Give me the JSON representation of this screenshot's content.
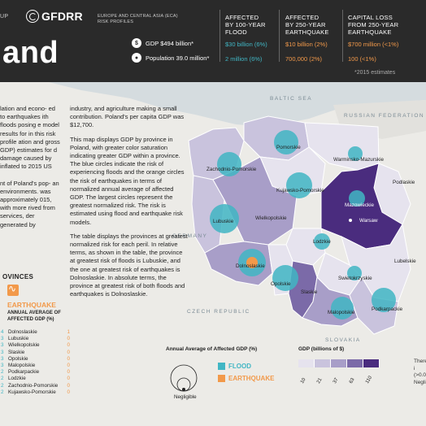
{
  "header": {
    "tag": "UP",
    "logo": "GFDRR",
    "region_line1": "EUROPE AND CENTRAL ASIA (ECA)",
    "region_line2": "RISK PROFILES",
    "title": "land",
    "gdp": "GDP $494 billion*",
    "population": "Population 39.0 million*",
    "cols": [
      {
        "head1": "AFFECTED",
        "head2": "BY 100-YEAR",
        "head3": "FLOOD",
        "v1": "$30 billion (6%)",
        "v2": "2 million (6%)"
      },
      {
        "head1": "AFFECTED",
        "head2": "BY 250-YEAR",
        "head3": "EARTHQUAKE",
        "v1": "$10 billion (2%)",
        "v2": "700,000 (2%)"
      },
      {
        "head1": "CAPITAL LOSS",
        "head2": "FROM 250-YEAR",
        "head3": "EARTHQUAKE",
        "v1": "$700 million (<1%)",
        "v2": "100 (<1%)"
      }
    ],
    "footnote": "*2015 estimates"
  },
  "left_text": {
    "p1": "lation and econo- ed to earthquakes ith floods posing e model results for in this risk profile ation and gross GDP) estimates for d damage caused by inflated to 2015 US",
    "p2": "nt of Poland's pop- an environments. was approximately 015, with more rived from services, der generated by"
  },
  "mid_text": {
    "p1": "industry, and agriculture making a small contribution. Poland's per capita GDP was $12,700.",
    "p2": "This map displays GDP by province in Poland, with greater color saturation indicating greater GDP within a province. The blue circles indicate the risk of experiencing floods and the orange circles the risk of earthquakes in terms of normalized annual average of affected GDP. The largest circles represent the greatest normalized risk. The risk is estimated using flood and earthquake risk models.",
    "p3": "The table displays the provinces at greatest normalized risk for each peril. In relative terms, as shown in the table, the province at greatest risk of floods is Lubuskie, and the one at greatest risk of earthquakes is Dolnoslaskie. In absolute terms, the province at greatest risk of both floods and earthquakes is Dolnoslaskie."
  },
  "provinces_heading": "OVINCES",
  "earthquake_label": "EARTHQUAKE",
  "eq_sub1": "ANNUAL AVERAGE OF",
  "eq_sub2": "AFFECTED GDP (%)",
  "rank_rows": [
    {
      "n": "4",
      "name": "Dolnoslaskie",
      "v": "1"
    },
    {
      "n": "3",
      "name": "Lubuskie",
      "v": "0"
    },
    {
      "n": "3",
      "name": "Wielkopolskie",
      "v": "0"
    },
    {
      "n": "3",
      "name": "Slaskie",
      "v": "0"
    },
    {
      "n": "3",
      "name": "Opolskie",
      "v": "0"
    },
    {
      "n": "3",
      "name": "Malopolskie",
      "v": "0"
    },
    {
      "n": "2",
      "name": "Podkarpackie",
      "v": "0"
    },
    {
      "n": "2",
      "name": "Lodzkie",
      "v": "0"
    },
    {
      "n": "2",
      "name": "Zachodnio-Pomorskie",
      "v": "0"
    },
    {
      "n": "2",
      "name": "Kujawsko-Pomorskie",
      "v": "0"
    }
  ],
  "map": {
    "sea": "BALTIC SEA",
    "russia": "RUSSIAN FEDERATION",
    "germany": "GERMANY",
    "czech": "CZECH REPUBLIC",
    "slovakia": "SLOVAKIA",
    "labels": {
      "pomorskie": "Pomorskie",
      "warminsko": "Warminsko-Mazurskie",
      "zachodnio": "Zachodnio-Pomorskie",
      "kujawsko": "Kujawsko-Pomorskie",
      "podlaskie": "Podlaskie",
      "mazowieckie": "Mazowieckie",
      "warsaw": "Warsaw",
      "lubuskie": "Lubuskie",
      "wielkopolskie": "Wielkopolskie",
      "lodzkie": "Lodzkie",
      "lubelskie": "Lubelskie",
      "dolnoslaskie": "Dolnoslaskie",
      "opolskie": "Opolskie",
      "swietokrzyskie": "Swietokrzyskie",
      "slaskie": "Slaskie",
      "malopolskie": "Malopolskie",
      "podkarpackie": "Podkarpackie"
    }
  },
  "legend": {
    "circle_title": "Annual Average of Affected GDP (%)",
    "flood": "FLOOD",
    "earthquake": "EARTHQUAKE",
    "negligible": "Negligible",
    "gdp_title": "GDP (billions of $)",
    "gdp_ticks": [
      "10",
      "21",
      "37",
      "63",
      "110"
    ],
    "right_note": "There i (>0.01 Negligi"
  },
  "colors": {
    "flood": "#41b6c4",
    "earthquake": "#f2994a",
    "gdp_scale": [
      "#e6e3ee",
      "#c9c3dd",
      "#a89ec8",
      "#7b6aa8",
      "#4a2c7e"
    ]
  }
}
